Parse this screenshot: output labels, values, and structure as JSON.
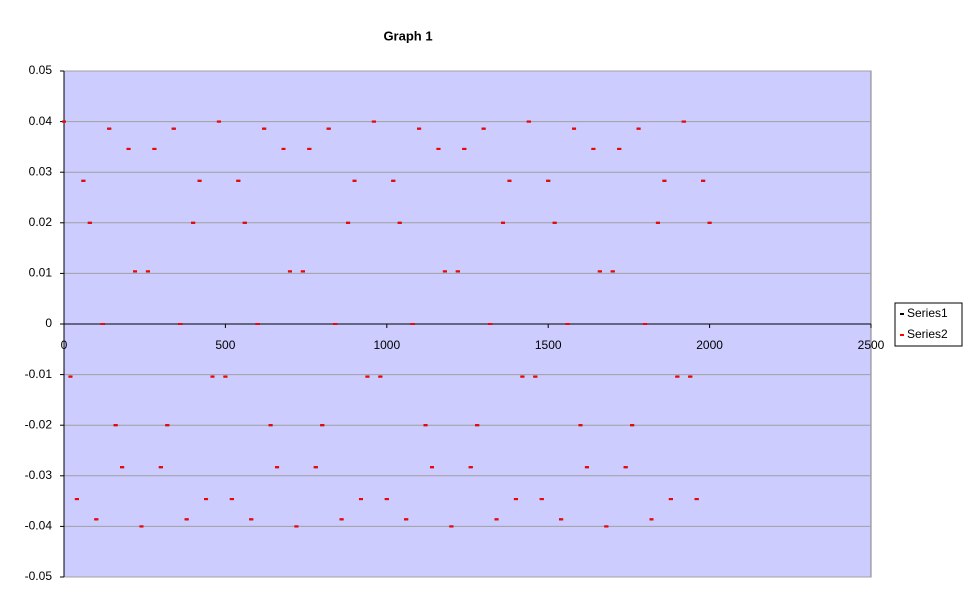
{
  "chart_data": {
    "type": "scatter",
    "title": "Graph 1",
    "x": [
      0,
      20,
      40,
      60,
      80,
      100,
      120,
      140,
      160,
      180,
      200,
      220,
      240,
      260,
      280,
      300,
      320,
      340,
      360,
      380,
      400,
      420,
      440,
      460,
      480,
      500,
      520,
      540,
      560,
      580,
      600,
      620,
      640,
      660,
      680,
      700,
      720,
      740,
      760,
      780,
      800,
      820,
      840,
      860,
      880,
      900,
      920,
      940,
      960,
      980,
      1000,
      1020,
      1040,
      1060,
      1080,
      1100,
      1120,
      1140,
      1160,
      1180,
      1200,
      1220,
      1240,
      1260,
      1280,
      1300,
      1320,
      1340,
      1360,
      1380,
      1400,
      1420,
      1440,
      1460,
      1480,
      1500,
      1520,
      1540,
      1560,
      1580,
      1600,
      1620,
      1640,
      1660,
      1680,
      1700,
      1720,
      1740,
      1760,
      1780,
      1800,
      1820,
      1840,
      1860,
      1880,
      1900,
      1920,
      1940,
      1960,
      1980,
      2000
    ],
    "series": [
      {
        "name": "Series1",
        "color": "#000000",
        "values": [
          0.04,
          -0.0104,
          -0.0346,
          0.0283,
          0.02,
          -0.0386,
          0,
          0.0386,
          -0.02,
          -0.0283,
          0.0346,
          0.0104,
          -0.04,
          0.0104,
          0.0346,
          -0.0283,
          -0.02,
          0.0386,
          0,
          -0.0386,
          0.02,
          0.0283,
          -0.0346,
          -0.0104,
          0.04,
          -0.0104,
          -0.0346,
          0.0283,
          0.02,
          -0.0386,
          0,
          0.0386,
          -0.02,
          -0.0283,
          0.0346,
          0.0104,
          -0.04,
          0.0104,
          0.0346,
          -0.0283,
          -0.02,
          0.0386,
          0,
          -0.0386,
          0.02,
          0.0283,
          -0.0346,
          -0.0104,
          0.04,
          -0.0104,
          -0.0346,
          0.0283,
          0.02,
          -0.0386,
          0,
          0.0386,
          -0.02,
          -0.0283,
          0.0346,
          0.0104,
          -0.04,
          0.0104,
          0.0346,
          -0.0283,
          -0.02,
          0.0386,
          0,
          -0.0386,
          0.02,
          0.0283,
          -0.0346,
          -0.0104,
          0.04,
          -0.0104,
          -0.0346,
          0.0283,
          0.02,
          -0.0386,
          0,
          0.0386,
          -0.02,
          -0.0283,
          0.0346,
          0.0104,
          -0.04,
          0.0104,
          0.0346,
          -0.0283,
          -0.02,
          0.0386,
          0,
          -0.0386,
          0.02,
          0.0283,
          -0.0346,
          -0.0104,
          0.04,
          -0.0104,
          -0.0346,
          0.0283,
          0.02
        ]
      },
      {
        "name": "Series2",
        "color": "#ff0000",
        "values": [
          0.04,
          -0.0104,
          -0.0346,
          0.0283,
          0.02,
          -0.0386,
          0,
          0.0386,
          -0.02,
          -0.0283,
          0.0346,
          0.0104,
          -0.04,
          0.0104,
          0.0346,
          -0.0283,
          -0.02,
          0.0386,
          0,
          -0.0386,
          0.02,
          0.0283,
          -0.0346,
          -0.0104,
          0.04,
          -0.0104,
          -0.0346,
          0.0283,
          0.02,
          -0.0386,
          0,
          0.0386,
          -0.02,
          -0.0283,
          0.0346,
          0.0104,
          -0.04,
          0.0104,
          0.0346,
          -0.0283,
          -0.02,
          0.0386,
          0,
          -0.0386,
          0.02,
          0.0283,
          -0.0346,
          -0.0104,
          0.04,
          -0.0104,
          -0.0346,
          0.0283,
          0.02,
          -0.0386,
          0,
          0.0386,
          -0.02,
          -0.0283,
          0.0346,
          0.0104,
          -0.04,
          0.0104,
          0.0346,
          -0.0283,
          -0.02,
          0.0386,
          0,
          -0.0386,
          0.02,
          0.0283,
          -0.0346,
          -0.0104,
          0.04,
          -0.0104,
          -0.0346,
          0.0283,
          0.02,
          -0.0386,
          0,
          0.0386,
          -0.02,
          -0.0283,
          0.0346,
          0.0104,
          -0.04,
          0.0104,
          0.0346,
          -0.0283,
          -0.02,
          0.0386,
          0,
          -0.0386,
          0.02,
          0.0283,
          -0.0346,
          -0.0104,
          0.04,
          -0.0104,
          -0.0346,
          0.0283,
          0.02
        ]
      }
    ],
    "xlim": [
      0,
      2500
    ],
    "xticks": [
      0,
      500,
      1000,
      1500,
      2000,
      2500
    ],
    "ylim": [
      -0.05,
      0.05
    ],
    "yticks": [
      -0.05,
      -0.04,
      -0.03,
      -0.02,
      -0.01,
      0,
      0.01,
      0.02,
      0.03,
      0.04,
      0.05
    ],
    "grid": true,
    "legend": "right",
    "plot_background": "#ccccff"
  }
}
